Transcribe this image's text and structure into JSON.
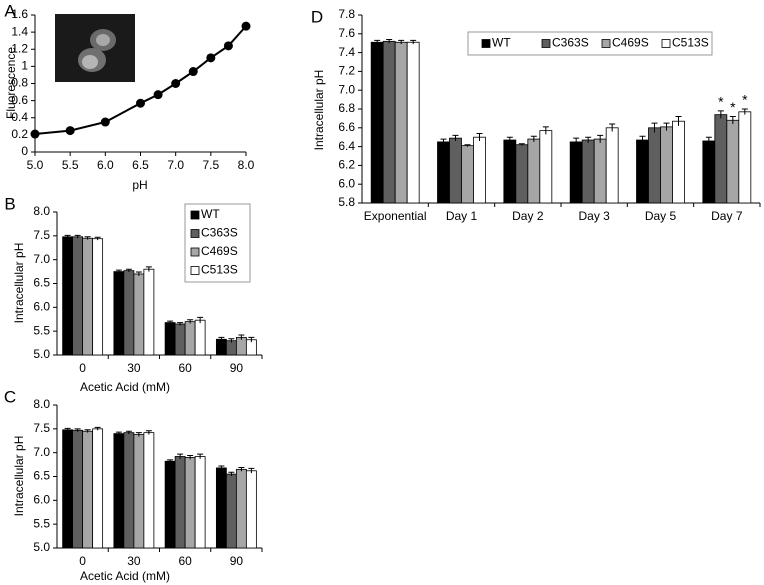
{
  "chart_data": [
    {
      "panel": "A",
      "type": "line",
      "x_label": "pH",
      "y_label": "Fluorescence",
      "x": [
        5.0,
        5.5,
        6.0,
        6.5,
        6.75,
        7.0,
        7.25,
        7.5,
        7.75,
        8.0
      ],
      "values": [
        0.21,
        0.25,
        0.35,
        0.57,
        0.67,
        0.8,
        0.94,
        1.1,
        1.24,
        1.47
      ],
      "color": "#000000",
      "xlim": [
        5,
        8
      ],
      "xticks": [
        {
          "value": 5,
          "label": "5.0"
        },
        5.5,
        {
          "value": 6,
          "label": "6.0"
        },
        6.5,
        {
          "value": 7,
          "label": "7.0"
        },
        7.5,
        {
          "value": 8,
          "label": "8.0"
        }
      ],
      "ylim": [
        0,
        1.6
      ],
      "yticks": [
        0,
        0.2,
        0.4,
        0.6,
        0.8,
        1,
        1.2,
        1.4,
        1.6
      ]
    },
    {
      "panel": "B",
      "type": "bar",
      "x_label": "Acetic Acid (mM)",
      "y_label": "Intracellular pH",
      "categories": [
        "0",
        "30",
        "60",
        "90"
      ],
      "series": [
        {
          "name": "WT",
          "color": "#000000",
          "values": [
            7.48,
            6.75,
            5.68,
            5.33
          ],
          "errors": [
            0.03,
            0.03,
            0.03,
            0.04
          ]
        },
        {
          "name": "C363S",
          "color": "#5f5f5f",
          "values": [
            7.48,
            6.77,
            5.65,
            5.3
          ],
          "errors": [
            0.03,
            0.03,
            0.03,
            0.04
          ]
        },
        {
          "name": "C469S",
          "color": "#a6a6a6",
          "values": [
            7.45,
            6.7,
            5.7,
            5.37
          ],
          "errors": [
            0.03,
            0.04,
            0.04,
            0.05
          ]
        },
        {
          "name": "C513S",
          "color": "#ffffff",
          "values": [
            7.44,
            6.8,
            5.73,
            5.32
          ],
          "errors": [
            0.03,
            0.05,
            0.06,
            0.05
          ]
        }
      ],
      "ylim": [
        5,
        8
      ],
      "yticks": [
        {
          "value": 5,
          "label": "5.0"
        },
        5.5,
        {
          "value": 6,
          "label": "6.0"
        },
        6.5,
        {
          "value": 7,
          "label": "7.0"
        },
        7.5,
        {
          "value": 8,
          "label": "8.0"
        }
      ],
      "legend": "upper right"
    },
    {
      "panel": "C",
      "type": "bar",
      "x_label": "Acetic Acid (mM)",
      "y_label": "Intracellular pH",
      "categories": [
        "0",
        "30",
        "60",
        "90"
      ],
      "series": [
        {
          "name": "WT",
          "color": "#000000",
          "values": [
            7.48,
            7.4,
            6.82,
            6.68
          ],
          "errors": [
            0.03,
            0.03,
            0.03,
            0.04
          ]
        },
        {
          "name": "C363S",
          "color": "#5f5f5f",
          "values": [
            7.47,
            7.42,
            6.92,
            6.55
          ],
          "errors": [
            0.03,
            0.03,
            0.05,
            0.04
          ]
        },
        {
          "name": "C469S",
          "color": "#a6a6a6",
          "values": [
            7.45,
            7.38,
            6.9,
            6.65
          ],
          "errors": [
            0.03,
            0.04,
            0.04,
            0.04
          ]
        },
        {
          "name": "C513S",
          "color": "#ffffff",
          "values": [
            7.5,
            7.42,
            6.92,
            6.62
          ],
          "errors": [
            0.03,
            0.04,
            0.05,
            0.05
          ]
        }
      ],
      "ylim": [
        5,
        8
      ],
      "yticks": [
        {
          "value": 5,
          "label": "5.0"
        },
        5.5,
        {
          "value": 6,
          "label": "6.0"
        },
        6.5,
        {
          "value": 7,
          "label": "7.0"
        },
        7.5,
        {
          "value": 8,
          "label": "8.0"
        }
      ]
    },
    {
      "panel": "D",
      "type": "bar",
      "y_label": "Intracellular pH",
      "categories": [
        "Exponential",
        "Day 1",
        "Day 2",
        "Day 3",
        "Day 5",
        "Day 7"
      ],
      "series": [
        {
          "name": "WT",
          "color": "#000000",
          "values": [
            7.51,
            6.45,
            6.47,
            6.45,
            6.47,
            6.46
          ],
          "errors": [
            0.02,
            0.03,
            0.03,
            0.04,
            0.04,
            0.04
          ]
        },
        {
          "name": "C363S",
          "color": "#5f5f5f",
          "values": [
            7.52,
            6.49,
            6.42,
            6.47,
            6.6,
            6.74
          ],
          "errors": [
            0.02,
            0.03,
            0.01,
            0.03,
            0.05,
            0.04
          ]
        },
        {
          "name": "C469S",
          "color": "#a6a6a6",
          "values": [
            7.51,
            6.41,
            6.48,
            6.48,
            6.61,
            6.68
          ],
          "errors": [
            0.02,
            0.01,
            0.03,
            0.04,
            0.04,
            0.04
          ]
        },
        {
          "name": "C513S",
          "color": "#ffffff",
          "values": [
            7.51,
            6.5,
            6.57,
            6.6,
            6.67,
            6.77
          ],
          "errors": [
            0.02,
            0.04,
            0.04,
            0.04,
            0.05,
            0.03
          ]
        }
      ],
      "ylim": [
        5.8,
        7.8
      ],
      "yticks": [
        5.8,
        {
          "value": 6,
          "label": "6.0"
        },
        6.2,
        6.4,
        6.6,
        6.8,
        {
          "value": 7,
          "label": "7.0"
        },
        7.2,
        7.4,
        7.6,
        7.8
      ],
      "annotations": [
        {
          "text": "*",
          "category": "Day 7",
          "series": "C363S"
        },
        {
          "text": "*",
          "category": "Day 7",
          "series": "C469S"
        },
        {
          "text": "*",
          "category": "Day 7",
          "series": "C513S"
        }
      ],
      "legend": "upper center"
    }
  ]
}
